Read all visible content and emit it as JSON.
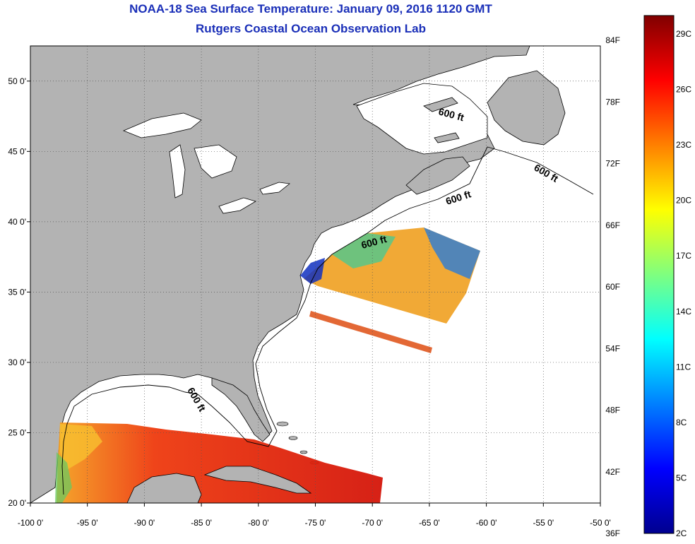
{
  "header": {
    "title": "NOAA-18 Sea Surface Temperature:  January 09, 2016 1120 GMT",
    "subtitle": "Rutgers Coastal Ocean Observation Lab"
  },
  "map": {
    "lon_range": [
      -100,
      -50
    ],
    "lat_range": [
      20,
      52.5
    ],
    "lon_ticks": [
      "-100 0'",
      "-95 0'",
      "-90 0'",
      "-85 0'",
      "-80 0'",
      "-75 0'",
      "-70 0'",
      "-65 0'",
      "-60 0'",
      "-55 0'",
      "-50 0'"
    ],
    "lat_ticks": [
      "50 0'",
      "45 0'",
      "40 0'",
      "35 0'",
      "30 0'",
      "25 0'",
      "20 0'"
    ],
    "contour_label": "600 ft",
    "land_color": "#b3b3b3",
    "grid": "dotted"
  },
  "colorbar": {
    "fahrenheit_labels": [
      "84F",
      "78F",
      "72F",
      "66F",
      "60F",
      "54F",
      "48F",
      "42F",
      "36F"
    ],
    "celsius_labels": [
      "29C",
      "26C",
      "23C",
      "20C",
      "17C",
      "14C",
      "11C",
      "8C",
      "5C",
      "2C"
    ],
    "colormap": "jet"
  }
}
